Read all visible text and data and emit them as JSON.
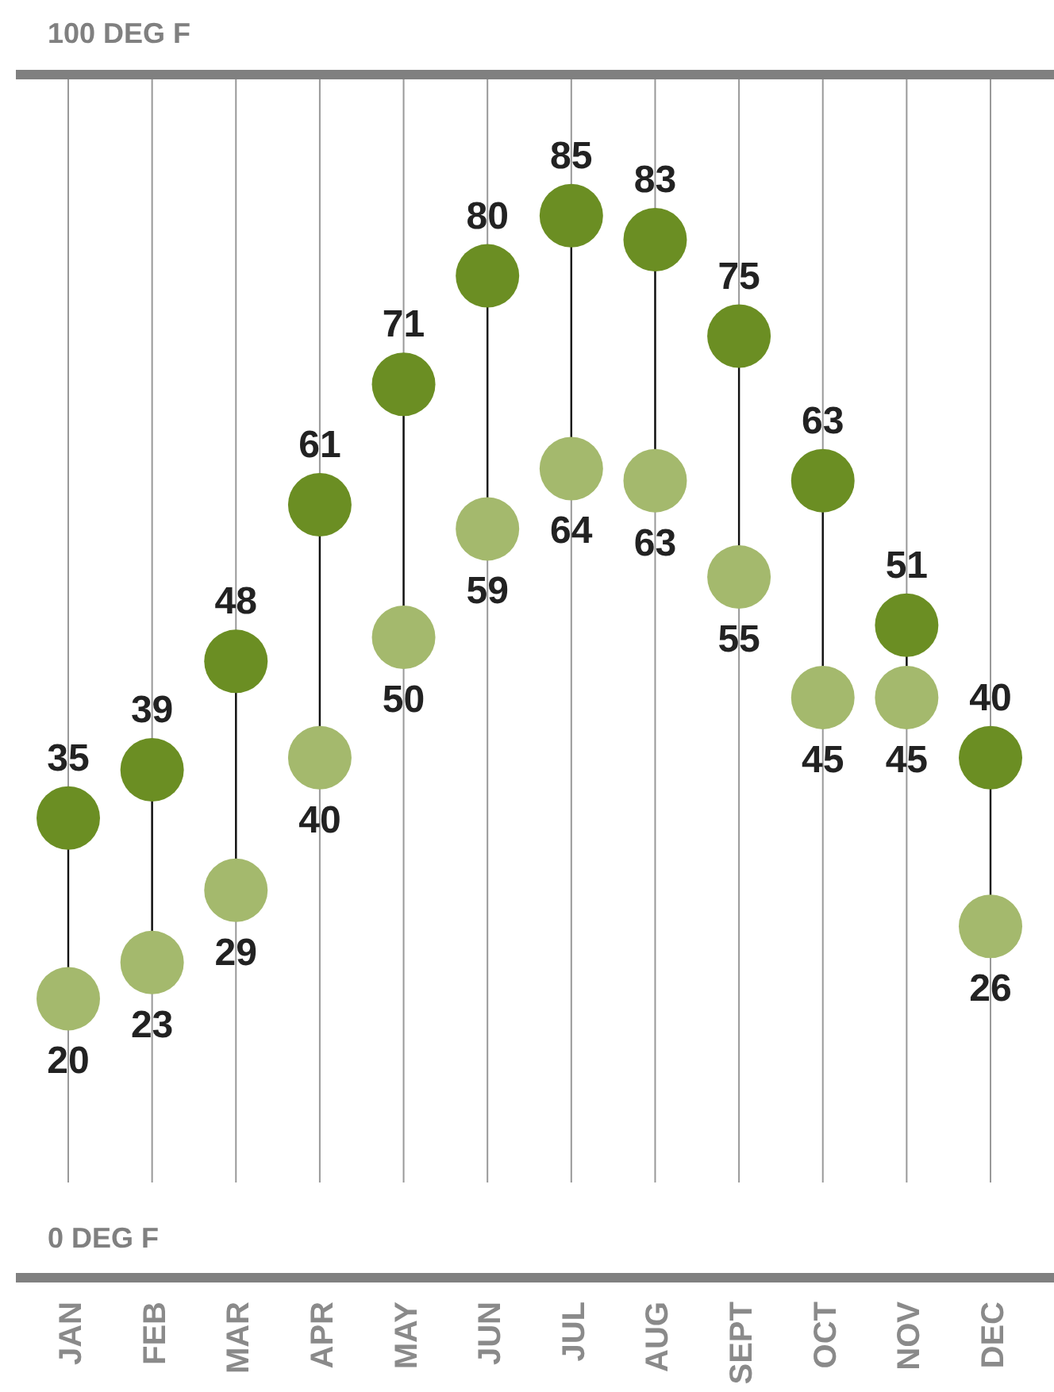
{
  "chart_data": {
    "type": "scatter",
    "categories": [
      "JAN",
      "FEB",
      "MAR",
      "APR",
      "MAY",
      "JUN",
      "JUL",
      "AUG",
      "SEPT",
      "OCT",
      "NOV",
      "DEC"
    ],
    "series": [
      {
        "color": "#6b8e23",
        "values": [
          35,
          39,
          48,
          61,
          71,
          80,
          85,
          83,
          75,
          63,
          51,
          40
        ]
      },
      {
        "color": "#a4b96d",
        "values": [
          20,
          23,
          29,
          40,
          50,
          59,
          64,
          63,
          55,
          45,
          45,
          26
        ]
      }
    ],
    "ylim": [
      0,
      100
    ],
    "yticks": [
      {
        "value": 0,
        "label": "0 DEG F"
      },
      {
        "value": 100,
        "label": "100 DEG F"
      }
    ],
    "grid": "x",
    "marker": "circle",
    "data_labels": true
  }
}
